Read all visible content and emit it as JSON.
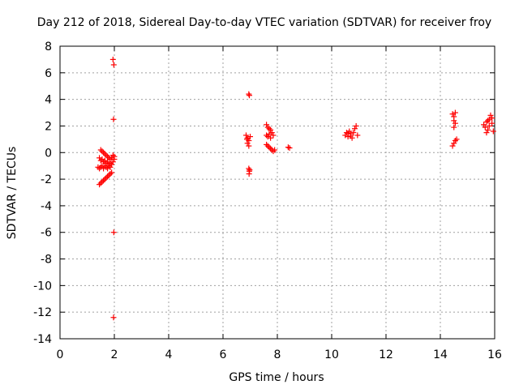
{
  "chart_data": {
    "type": "scatter",
    "title": "Day 212 of 2018, Sidereal Day-to-day VTEC variation (SDTVAR) for receiver froy",
    "xlabel": "GPS time / hours",
    "ylabel": "SDTVAR / TECUs",
    "xlim": [
      0,
      16
    ],
    "ylim": [
      -14,
      8
    ],
    "xticks": [
      "0",
      "2",
      "4",
      "6",
      "8",
      "10",
      "12",
      "14",
      "16"
    ],
    "yticks": [
      "8",
      "6",
      "4",
      "2",
      "0",
      "-2",
      "-4",
      "-6",
      "-8",
      "-10",
      "-12",
      "-14"
    ],
    "grid": true,
    "marker": "+",
    "color": "#ff0000",
    "series": [
      {
        "points": [
          [
            1.95,
            7.0
          ],
          [
            1.98,
            6.6
          ],
          [
            1.97,
            2.5
          ],
          [
            1.98,
            -6.0
          ],
          [
            1.97,
            -12.4
          ],
          [
            1.45,
            -2.4
          ],
          [
            1.5,
            -2.3
          ],
          [
            1.55,
            -2.2
          ],
          [
            1.6,
            -2.1
          ],
          [
            1.65,
            -2.0
          ],
          [
            1.7,
            -1.9
          ],
          [
            1.75,
            -1.8
          ],
          [
            1.8,
            -1.7
          ],
          [
            1.85,
            -1.6
          ],
          [
            1.9,
            -1.5
          ],
          [
            1.4,
            -1.1
          ],
          [
            1.45,
            -1.2
          ],
          [
            1.5,
            -1.1
          ],
          [
            1.55,
            -1.0
          ],
          [
            1.6,
            -1.2
          ],
          [
            1.65,
            -1.0
          ],
          [
            1.7,
            -1.1
          ],
          [
            1.45,
            -0.4
          ],
          [
            1.5,
            -0.6
          ],
          [
            1.55,
            -0.5
          ],
          [
            1.6,
            -0.7
          ],
          [
            1.65,
            -0.6
          ],
          [
            1.7,
            -0.8
          ],
          [
            1.75,
            -0.7
          ],
          [
            1.8,
            -0.9
          ],
          [
            1.85,
            -0.8
          ],
          [
            1.5,
            0.2
          ],
          [
            1.55,
            0.1
          ],
          [
            1.6,
            0.0
          ],
          [
            1.65,
            -0.1
          ],
          [
            1.7,
            -0.2
          ],
          [
            1.75,
            -0.3
          ],
          [
            1.8,
            -0.4
          ],
          [
            1.85,
            -0.5
          ],
          [
            1.9,
            -0.4
          ],
          [
            1.95,
            -0.2
          ],
          [
            2.0,
            -0.3
          ],
          [
            1.75,
            -1.2
          ],
          [
            1.8,
            -1.0
          ],
          [
            1.85,
            -1.1
          ],
          [
            1.9,
            -0.9
          ],
          [
            1.95,
            -0.7
          ],
          [
            2.0,
            -0.5
          ],
          [
            6.95,
            4.4
          ],
          [
            6.97,
            4.3
          ],
          [
            6.85,
            1.3
          ],
          [
            6.9,
            1.1
          ],
          [
            6.95,
            0.9
          ],
          [
            6.9,
            0.7
          ],
          [
            6.95,
            0.5
          ],
          [
            7.0,
            1.2
          ],
          [
            6.88,
            1.0
          ],
          [
            6.95,
            -1.2
          ],
          [
            6.97,
            -1.4
          ],
          [
            6.96,
            -1.6
          ],
          [
            6.98,
            -1.3
          ],
          [
            7.6,
            2.1
          ],
          [
            7.65,
            1.9
          ],
          [
            7.7,
            1.8
          ],
          [
            7.75,
            1.7
          ],
          [
            7.8,
            1.5
          ],
          [
            7.85,
            1.3
          ],
          [
            7.6,
            1.3
          ],
          [
            7.65,
            1.2
          ],
          [
            7.7,
            1.4
          ],
          [
            7.75,
            1.1
          ],
          [
            7.6,
            0.6
          ],
          [
            7.65,
            0.5
          ],
          [
            7.7,
            0.4
          ],
          [
            7.75,
            0.3
          ],
          [
            7.8,
            0.2
          ],
          [
            7.85,
            0.1
          ],
          [
            7.9,
            0.2
          ],
          [
            8.4,
            0.4
          ],
          [
            8.45,
            0.35
          ],
          [
            10.5,
            1.3
          ],
          [
            10.55,
            1.5
          ],
          [
            10.6,
            1.2
          ],
          [
            10.65,
            1.6
          ],
          [
            10.7,
            1.4
          ],
          [
            10.75,
            1.1
          ],
          [
            10.8,
            1.5
          ],
          [
            10.85,
            1.8
          ],
          [
            10.9,
            2.0
          ],
          [
            10.95,
            1.3
          ],
          [
            10.6,
            1.45
          ],
          [
            10.7,
            1.25
          ],
          [
            14.45,
            2.9
          ],
          [
            14.5,
            2.7
          ],
          [
            14.55,
            3.0
          ],
          [
            14.5,
            2.4
          ],
          [
            14.55,
            2.2
          ],
          [
            14.5,
            1.9
          ],
          [
            14.45,
            0.5
          ],
          [
            14.5,
            0.7
          ],
          [
            14.55,
            0.9
          ],
          [
            14.6,
            1.0
          ],
          [
            15.6,
            2.1
          ],
          [
            15.65,
            1.9
          ],
          [
            15.7,
            2.3
          ],
          [
            15.75,
            1.7
          ],
          [
            15.8,
            2.5
          ],
          [
            15.85,
            2.8
          ],
          [
            15.9,
            2.2
          ],
          [
            15.95,
            1.6
          ],
          [
            15.7,
            1.5
          ],
          [
            15.8,
            2.0
          ],
          [
            15.9,
            2.6
          ],
          [
            15.75,
            2.4
          ]
        ]
      }
    ]
  }
}
